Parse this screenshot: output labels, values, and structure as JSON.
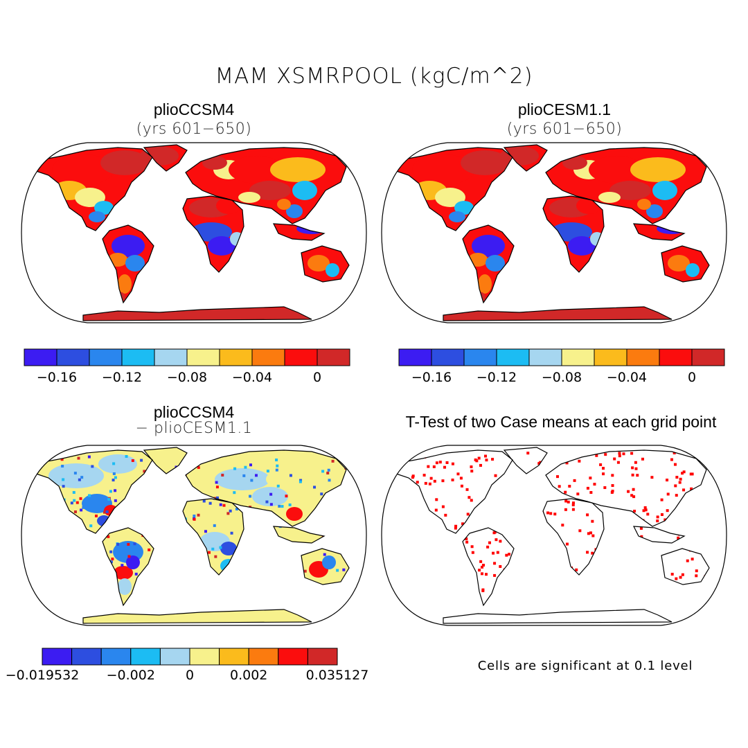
{
  "title": "MAM XSMRPOOL (kgC/m^2)",
  "panels": {
    "ccsm4": {
      "title": "plioCCSM4",
      "subtitle": "(yrs 601−650)"
    },
    "cesm": {
      "title": "plioCESM1.1",
      "subtitle": "(yrs 601−650)"
    },
    "diff": {
      "title": "plioCCSM4",
      "subtitle": "− plioCESM1.1"
    },
    "ttest": {
      "title": "T-Test of two Case means at each grid point",
      "note": "Cells are significant at 0.1 level"
    }
  },
  "colors": {
    "scale": [
      "#3c1cf2",
      "#2d4ee0",
      "#2a86ee",
      "#1cbcf3",
      "#a6d6f0",
      "#f7f18c",
      "#fbbb1c",
      "#fb7b0f",
      "#fb0d0d",
      "#d12828"
    ],
    "significant": "#ff0000"
  },
  "colorbars": {
    "abs_ticks": [
      "−0.16",
      "−0.12",
      "−0.08",
      "−0.04",
      "0"
    ],
    "diff_ticks": [
      "−0.019532",
      "−0.002",
      "0",
      "0.002",
      "0.035127"
    ]
  },
  "chart_data": [
    {
      "type": "heatmap",
      "title": "plioCCSM4",
      "subtitle": "(yrs 601−650)",
      "variable": "MAM XSMRPOOL (kgC/m^2)",
      "color_levels": [
        -0.16,
        -0.14,
        -0.12,
        -0.1,
        -0.08,
        -0.06,
        -0.04,
        -0.02,
        0
      ],
      "colorbar_ticks": [
        -0.16,
        -0.12,
        -0.08,
        -0.04,
        0
      ]
    },
    {
      "type": "heatmap",
      "title": "plioCESM1.1",
      "subtitle": "(yrs 601−650)",
      "variable": "MAM XSMRPOOL (kgC/m^2)",
      "color_levels": [
        -0.16,
        -0.14,
        -0.12,
        -0.1,
        -0.08,
        -0.06,
        -0.04,
        -0.02,
        0
      ],
      "colorbar_ticks": [
        -0.16,
        -0.12,
        -0.08,
        -0.04,
        0
      ]
    },
    {
      "type": "heatmap",
      "title": "plioCCSM4 − plioCESM1.1",
      "colorbar_ticks": [
        "-0.019532",
        "-0.002",
        "0",
        "0.002",
        "0.035127"
      ]
    },
    {
      "type": "heatmap",
      "title": "T-Test of two Case means at each grid point",
      "note": "Cells are significant at 0.1 level"
    }
  ]
}
